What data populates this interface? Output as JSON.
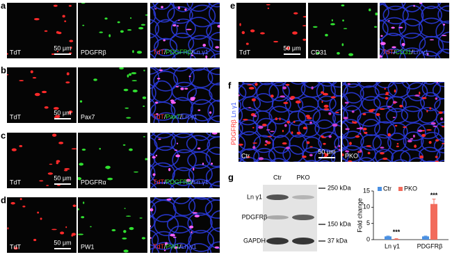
{
  "panels": [
    {
      "letter": "a",
      "images": [
        {
          "label": "TdT",
          "scale_bar": "50 μm"
        },
        {
          "label": "PDGFRβ"
        },
        {
          "merge": [
            {
              "text": "TdT",
              "color": "#ff3030"
            },
            {
              "text": "/",
              "color": "#ffffff"
            },
            {
              "text": "PDGFRβ",
              "color": "#30e030"
            },
            {
              "text": "/",
              "color": "#ffffff"
            },
            {
              "text": "Ln γ1",
              "color": "#6070ff"
            }
          ]
        }
      ]
    },
    {
      "letter": "b",
      "images": [
        {
          "label": "TdT",
          "scale_bar": "50 μm"
        },
        {
          "label": "Pax7"
        },
        {
          "merge": [
            {
              "text": "TdT",
              "color": "#ff3030"
            },
            {
              "text": "/",
              "color": "#ffffff"
            },
            {
              "text": "Pax7",
              "color": "#30e030"
            },
            {
              "text": "/",
              "color": "#ffffff"
            },
            {
              "text": "Ln γ1",
              "color": "#6070ff"
            }
          ]
        }
      ]
    },
    {
      "letter": "c",
      "images": [
        {
          "label": "TdT",
          "scale_bar": "50 μm"
        },
        {
          "label": "PDGFRα"
        },
        {
          "merge": [
            {
              "text": "TdT",
              "color": "#ff3030"
            },
            {
              "text": "/",
              "color": "#ffffff"
            },
            {
              "text": "PDGFRα",
              "color": "#30e030"
            },
            {
              "text": "/",
              "color": "#ffffff"
            },
            {
              "text": "Ln γ1",
              "color": "#6070ff"
            }
          ]
        }
      ]
    },
    {
      "letter": "d",
      "images": [
        {
          "label": "TdT",
          "scale_bar": "50 μm"
        },
        {
          "label": "PW1"
        },
        {
          "merge": [
            {
              "text": "TdT",
              "color": "#ff3030"
            },
            {
              "text": "/",
              "color": "#ffffff"
            },
            {
              "text": "PW1",
              "color": "#30e030"
            },
            {
              "text": "/",
              "color": "#ffffff"
            },
            {
              "text": "Ln γ1",
              "color": "#6070ff"
            }
          ]
        }
      ]
    },
    {
      "letter": "e",
      "images": [
        {
          "label": "TdT",
          "scale_bar": "50 μm"
        },
        {
          "label": "CD31"
        },
        {
          "merge": [
            {
              "text": "TdT",
              "color": "#ff3030"
            },
            {
              "text": "/",
              "color": "#ffffff"
            },
            {
              "text": "CD31",
              "color": "#30e030"
            },
            {
              "text": "/",
              "color": "#ffffff"
            },
            {
              "text": "Ln γ1",
              "color": "#6070ff"
            }
          ]
        }
      ]
    }
  ],
  "panel_f": {
    "letter": "f",
    "side_label": [
      {
        "text": "PDGFRβ",
        "color": "#ff3030"
      },
      {
        "text": "Ln γ1",
        "color": "#3050ff"
      }
    ],
    "images": [
      {
        "label": "Ctr",
        "scale_bar": "50 μm"
      },
      {
        "label": "PKO"
      }
    ]
  },
  "panel_g": {
    "letter": "g",
    "blot": {
      "columns": [
        "Ctr",
        "PKO"
      ],
      "rows": [
        "Ln γ1",
        "PDGFRβ",
        "GAPDH"
      ],
      "markers": [
        "250 kDa",
        "150 kDa",
        "37 kDa"
      ]
    },
    "chart": {
      "type": "bar",
      "ylabel": "Fold change",
      "categories": [
        "Ln γ1",
        "PDGFRβ"
      ],
      "series": [
        {
          "name": "Ctr",
          "color": "#4a90e2",
          "values": [
            1,
            1
          ],
          "errors": [
            0.1,
            0.1
          ]
        },
        {
          "name": "PKO",
          "color": "#f26b5b",
          "values": [
            0.2,
            11
          ],
          "errors": [
            0.1,
            1.5
          ]
        }
      ],
      "ylim": [
        0,
        15
      ],
      "yticks": [
        0,
        5,
        10,
        15
      ],
      "annotations": [
        "***",
        "***"
      ]
    }
  }
}
